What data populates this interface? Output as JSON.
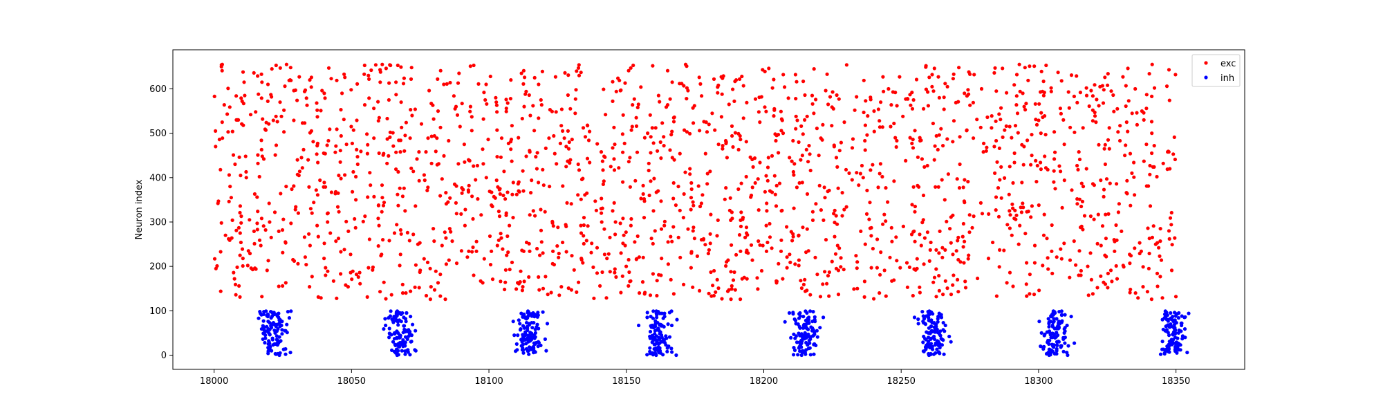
{
  "chart_data": {
    "type": "scatter",
    "title": "",
    "xlabel": "",
    "ylabel": "Neuron index",
    "xlim": [
      17985,
      18375
    ],
    "ylim": [
      -32,
      688
    ],
    "x_ticks": [
      18000,
      18050,
      18100,
      18150,
      18200,
      18250,
      18300,
      18350
    ],
    "y_ticks": [
      0,
      100,
      200,
      300,
      400,
      500,
      600
    ],
    "legend_position": "top-right",
    "grid": false,
    "series": [
      {
        "name": "exc",
        "color": "#ff0000",
        "marker": "dot",
        "generation": {
          "x_range": [
            18000,
            18350
          ],
          "neuron_range": [
            126,
            655
          ],
          "point_count": 1900,
          "seed": 7
        }
      },
      {
        "name": "inh",
        "color": "#0000ff",
        "marker": "dot",
        "generation": {
          "burst_times": [
            18022,
            18068,
            18115,
            18162,
            18215,
            18262,
            18306,
            18349
          ],
          "burst_spread": 2.5,
          "spikes_per_burst": 110,
          "neuron_range": [
            0,
            99
          ],
          "seed": 11
        }
      }
    ]
  }
}
